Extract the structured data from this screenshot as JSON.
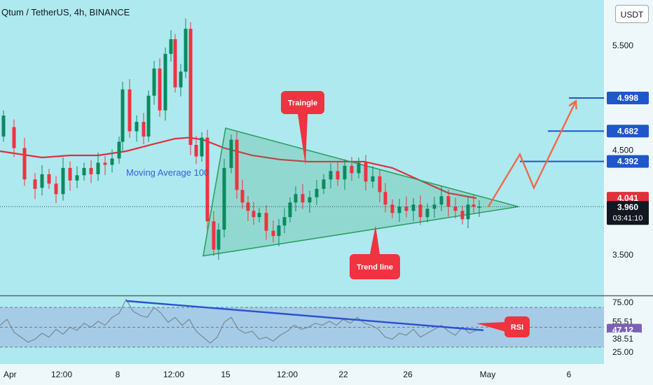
{
  "header": {
    "symbol": "Qtum / TetherUS, 4h, BINANCE",
    "currency": "USDT"
  },
  "colors": {
    "background": "#aee9ef",
    "up": "#0b8a5f",
    "down": "#ef3340",
    "ma": "#e0303b",
    "triangle": "#2e9e64",
    "target": "#1f56c9",
    "arrow": "#f2684a",
    "rsi": "#7a8a96",
    "rsi_trend": "#2c4fd1"
  },
  "chart_data": [
    {
      "type": "candlestick",
      "x_ticks": [
        "Apr",
        "12:00",
        "8",
        "12:00",
        "15",
        "12:00",
        "22",
        "26",
        "May",
        "6"
      ],
      "y_ticks": [
        "5.500",
        "4.500",
        "3.500"
      ],
      "y_range": [
        3.13,
        5.98
      ],
      "price_badges": [
        {
          "label": "4.998",
          "value": 4.998,
          "kind": "target"
        },
        {
          "label": "4.682",
          "value": 4.682,
          "kind": "target"
        },
        {
          "label": "4.392",
          "value": 4.392,
          "kind": "target"
        },
        {
          "label": "4.041",
          "value": 4.041,
          "kind": "ma"
        },
        {
          "label": "3.960",
          "value": 3.96,
          "kind": "last"
        }
      ],
      "countdown": "03:41:10",
      "annotations": {
        "moving_average": "Moving Average 100",
        "triangle": "Traingle",
        "trend_line": "Trend line"
      },
      "moving_average": [
        [
          0,
          4.49
        ],
        [
          20,
          4.47
        ],
        [
          60,
          4.43
        ],
        [
          100,
          4.45
        ],
        [
          140,
          4.45
        ],
        [
          180,
          4.49
        ],
        [
          220,
          4.56
        ],
        [
          250,
          4.61
        ],
        [
          270,
          4.62
        ],
        [
          290,
          4.6
        ],
        [
          320,
          4.52
        ],
        [
          360,
          4.45
        ],
        [
          400,
          4.41
        ],
        [
          440,
          4.39
        ],
        [
          480,
          4.39
        ],
        [
          520,
          4.39
        ],
        [
          560,
          4.33
        ],
        [
          600,
          4.21
        ],
        [
          640,
          4.09
        ],
        [
          680,
          4.041
        ]
      ],
      "trend_targets": [
        {
          "value": 4.998,
          "x": [
            812,
            862
          ]
        },
        {
          "value": 4.682,
          "x": [
            782,
            862
          ]
        },
        {
          "value": 4.392,
          "x": [
            742,
            862
          ]
        }
      ],
      "triangle_points": [
        [
          290,
          3.49
        ],
        [
          322,
          4.71
        ],
        [
          740,
          3.96
        ]
      ],
      "projection": [
        [
          697,
          3.96
        ],
        [
          742,
          4.46
        ],
        [
          762,
          4.14
        ],
        [
          822,
          4.97
        ]
      ],
      "candles_seed": 17,
      "candles": [
        [
          5,
          4.63,
          4.83
        ],
        [
          20,
          4.72,
          4.52
        ],
        [
          35,
          4.52,
          4.22
        ],
        [
          50,
          4.22,
          4.13
        ],
        [
          60,
          4.14,
          4.27
        ],
        [
          70,
          4.27,
          4.18
        ],
        [
          80,
          4.18,
          4.08
        ],
        [
          90,
          4.08,
          4.33
        ],
        [
          100,
          4.33,
          4.21
        ],
        [
          110,
          4.21,
          4.26
        ],
        [
          120,
          4.26,
          4.33
        ],
        [
          130,
          4.33,
          4.27
        ],
        [
          140,
          4.27,
          4.38
        ],
        [
          150,
          4.38,
          4.36
        ],
        [
          160,
          4.36,
          4.42
        ],
        [
          170,
          4.42,
          4.58
        ],
        [
          175,
          4.58,
          5.08
        ],
        [
          185,
          5.08,
          4.68
        ],
        [
          195,
          4.68,
          4.77
        ],
        [
          205,
          4.77,
          4.63
        ],
        [
          212,
          4.63,
          5.02
        ],
        [
          220,
          5.02,
          5.28
        ],
        [
          228,
          5.28,
          4.88
        ],
        [
          236,
          4.88,
          5.42
        ],
        [
          244,
          5.42,
          5.56
        ],
        [
          250,
          5.56,
          5.1
        ],
        [
          258,
          5.1,
          5.25
        ],
        [
          265,
          5.25,
          5.66
        ],
        [
          272,
          5.66,
          4.55
        ],
        [
          280,
          4.55,
          4.44
        ],
        [
          288,
          4.44,
          4.62
        ],
        [
          296,
          4.62,
          3.82
        ],
        [
          305,
          3.82,
          3.55
        ],
        [
          312,
          3.55,
          3.74
        ],
        [
          320,
          3.74,
          4.33
        ],
        [
          330,
          4.33,
          4.6
        ],
        [
          338,
          4.6,
          4.12
        ],
        [
          346,
          4.12,
          4.0
        ],
        [
          354,
          4.0,
          3.92
        ],
        [
          362,
          3.92,
          3.86
        ],
        [
          370,
          3.86,
          3.9
        ],
        [
          380,
          3.9,
          3.73
        ],
        [
          390,
          3.73,
          3.68
        ],
        [
          398,
          3.68,
          3.78
        ],
        [
          406,
          3.78,
          3.86
        ],
        [
          414,
          3.86,
          4.0
        ],
        [
          422,
          4.0,
          4.08
        ],
        [
          432,
          4.08,
          4.0
        ],
        [
          442,
          4.0,
          4.05
        ],
        [
          452,
          4.05,
          4.13
        ],
        [
          462,
          4.13,
          4.22
        ],
        [
          472,
          4.22,
          4.3
        ],
        [
          482,
          4.3,
          4.22
        ],
        [
          492,
          4.22,
          4.35
        ],
        [
          502,
          4.35,
          4.28
        ],
        [
          512,
          4.28,
          4.38
        ],
        [
          522,
          4.38,
          4.2
        ],
        [
          532,
          4.2,
          4.25
        ],
        [
          542,
          4.25,
          4.1
        ],
        [
          550,
          4.1,
          3.98
        ],
        [
          560,
          3.98,
          3.9
        ],
        [
          570,
          3.9,
          3.96
        ],
        [
          580,
          3.96,
          3.92
        ],
        [
          590,
          3.92,
          3.98
        ],
        [
          600,
          3.98,
          3.86
        ],
        [
          610,
          3.86,
          3.94
        ],
        [
          620,
          3.94,
          3.98
        ],
        [
          630,
          3.98,
          4.06
        ],
        [
          640,
          4.06,
          3.96
        ],
        [
          650,
          3.96,
          3.92
        ],
        [
          660,
          3.92,
          3.84
        ],
        [
          668,
          3.84,
          3.98
        ],
        [
          676,
          3.98,
          3.96
        ],
        [
          684,
          3.96,
          3.96
        ]
      ]
    },
    {
      "type": "line",
      "name": "RSI",
      "y_ticks": [
        "75.00",
        "55.51",
        "47.12",
        "38.51",
        "25.00"
      ],
      "y_range": [
        22,
        79
      ],
      "levels": [
        70,
        50,
        30
      ],
      "badges": [
        {
          "label": "55.51",
          "value": 55.51,
          "kind": "plain"
        },
        {
          "label": "47.12",
          "value": 47.12,
          "kind": "current"
        },
        {
          "label": "38.51",
          "value": 38.51,
          "kind": "plain"
        }
      ],
      "annotation": "RSI",
      "trend_line": [
        [
          180,
          76.5
        ],
        [
          690,
          47
        ]
      ],
      "values": [
        [
          0,
          52
        ],
        [
          10,
          58
        ],
        [
          20,
          45
        ],
        [
          30,
          40
        ],
        [
          40,
          35
        ],
        [
          50,
          38
        ],
        [
          60,
          44
        ],
        [
          70,
          40
        ],
        [
          80,
          48
        ],
        [
          90,
          43
        ],
        [
          100,
          50
        ],
        [
          110,
          47
        ],
        [
          120,
          54
        ],
        [
          130,
          50
        ],
        [
          140,
          56
        ],
        [
          150,
          52
        ],
        [
          160,
          60
        ],
        [
          170,
          64
        ],
        [
          180,
          78
        ],
        [
          190,
          66
        ],
        [
          200,
          62
        ],
        [
          210,
          60
        ],
        [
          220,
          70
        ],
        [
          230,
          64
        ],
        [
          240,
          55
        ],
        [
          250,
          60
        ],
        [
          260,
          52
        ],
        [
          270,
          58
        ],
        [
          280,
          46
        ],
        [
          290,
          40
        ],
        [
          300,
          34
        ],
        [
          310,
          40
        ],
        [
          320,
          55
        ],
        [
          330,
          60
        ],
        [
          340,
          48
        ],
        [
          350,
          44
        ],
        [
          360,
          46
        ],
        [
          370,
          38
        ],
        [
          380,
          40
        ],
        [
          390,
          36
        ],
        [
          400,
          42
        ],
        [
          410,
          46
        ],
        [
          420,
          52
        ],
        [
          430,
          48
        ],
        [
          440,
          50
        ],
        [
          450,
          54
        ],
        [
          460,
          52
        ],
        [
          470,
          56
        ],
        [
          480,
          52
        ],
        [
          490,
          58
        ],
        [
          500,
          54
        ],
        [
          510,
          60
        ],
        [
          520,
          54
        ],
        [
          530,
          52
        ],
        [
          540,
          48
        ],
        [
          550,
          40
        ],
        [
          560,
          38
        ],
        [
          570,
          44
        ],
        [
          580,
          42
        ],
        [
          590,
          48
        ],
        [
          600,
          40
        ],
        [
          610,
          44
        ],
        [
          620,
          48
        ],
        [
          630,
          52
        ],
        [
          640,
          46
        ],
        [
          650,
          42
        ],
        [
          660,
          50
        ],
        [
          670,
          44
        ],
        [
          680,
          47
        ]
      ]
    }
  ]
}
